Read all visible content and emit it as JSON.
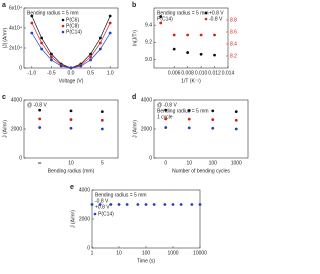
{
  "chart_data": [
    {
      "type": "line",
      "label": "a",
      "x_label": "Voltage (V)",
      "y_label": "|J| (A/m²)",
      "x": [
        -1.0,
        -0.75,
        -0.5,
        -0.25,
        0,
        0.25,
        0.5,
        0.75,
        1.0
      ],
      "xlim": [
        -1.2,
        1.2
      ],
      "xticks": [
        {
          "value": -1,
          "label": "-1.0"
        },
        -0.5,
        {
          "value": 0,
          "label": "0.0"
        },
        0.5,
        {
          "value": 1,
          "label": "1.0"
        }
      ],
      "ylim": [
        0,
        60000
      ],
      "yticks": [
        0,
        {
          "value": 20000,
          "label": "2x10⁴"
        },
        {
          "value": 40000,
          "label": "4x10⁴"
        },
        {
          "value": 60000,
          "label": "6x10⁴"
        }
      ],
      "legend": "upper center",
      "annotations": [
        "Bending radius = 5 mm"
      ],
      "series": [
        {
          "name": "P(C6)",
          "color": "#111111",
          "values": [
            52000,
            30000,
            14000,
            4000,
            0,
            4000,
            14000,
            30000,
            52000
          ]
        },
        {
          "name": "P(C8)",
          "color": "#d42020",
          "values": [
            45000,
            25000,
            11000,
            3000,
            0,
            3000,
            11000,
            25000,
            45000
          ]
        },
        {
          "name": "P(C14)",
          "color": "#2040c0",
          "values": [
            35000,
            19000,
            8000,
            2000,
            0,
            2000,
            8000,
            19000,
            35000
          ]
        }
      ]
    },
    {
      "type": "scatter",
      "label": "b",
      "x_label": "1/T (K⁻¹)",
      "y_label": "ln(J/T²)",
      "x": [
        0.004,
        0.006,
        0.008,
        0.01,
        0.012
      ],
      "xlim": [
        0.003,
        0.014
      ],
      "xticks": [
        0.006,
        0.008,
        {
          "value": 0.01,
          "label": "0.010"
        },
        0.012,
        0.014
      ],
      "ylim": [
        8.9,
        9.6
      ],
      "yticks": [
        {
          "value": 9,
          "label": "9.0"
        },
        9.2,
        9.4
      ],
      "y2lim": [
        8.0,
        9.0
      ],
      "y2ticks": [
        8.2,
        8.4,
        8.6,
        8.8
      ],
      "y2_color": "#d42020",
      "legend": "upper right",
      "annotations": [
        "Bending radius = 5 mm",
        "P(C14)"
      ],
      "series": [
        {
          "name": "+0.8 V",
          "color": "#111111",
          "values": [
            9.5,
            9.12,
            9.08,
            9.06,
            9.05
          ]
        },
        {
          "name": "-0.8 V",
          "color": "#d42020",
          "axis": "y2",
          "values": [
            8.75,
            8.55,
            8.55,
            8.55,
            8.55
          ]
        }
      ]
    },
    {
      "type": "scatter",
      "label": "c",
      "x_label": "Bending radius (mm)",
      "y_label": "J (A/m²)",
      "categories": [
        "∞",
        "10",
        "5"
      ],
      "ylim": [
        0,
        4000
      ],
      "yticks": [
        0,
        2000,
        4000
      ],
      "annotations": [
        "@ -0.8 V"
      ],
      "series": [
        {
          "color": "#111111",
          "values": [
            3300,
            3250,
            3200
          ]
        },
        {
          "color": "#d42020",
          "values": [
            2700,
            2650,
            2600
          ]
        },
        {
          "color": "#2040c0",
          "values": [
            2100,
            2050,
            2000
          ]
        }
      ]
    },
    {
      "type": "scatter",
      "label": "d",
      "x_label": "Number of bending cycles",
      "y_label": "J (A/m²)",
      "categories": [
        "0",
        "10",
        "100",
        "1000"
      ],
      "ylim": [
        0,
        4000
      ],
      "yticks": [
        0,
        2000,
        4000
      ],
      "annotations": [
        "@ -0.8 V",
        "Bending radius = 5 mm",
        "1 cycle"
      ],
      "series": [
        {
          "color": "#111111",
          "values": [
            3300,
            3280,
            3250,
            3200
          ]
        },
        {
          "color": "#d42020",
          "values": [
            2700,
            2680,
            2650,
            2600
          ]
        },
        {
          "color": "#2040c0",
          "values": [
            2100,
            2080,
            2050,
            2000
          ]
        }
      ]
    },
    {
      "type": "scatter",
      "label": "e",
      "x_label": "Time (s)",
      "y_label": "J (A/m²)",
      "x": [
        1,
        2,
        5,
        10,
        20,
        50,
        100,
        200,
        500,
        1000,
        2000,
        5000,
        10000
      ],
      "log_x": true,
      "xlim": [
        1,
        10000
      ],
      "xticks": [
        1,
        10,
        100,
        1000,
        10000
      ],
      "ylim": [
        0,
        4000
      ],
      "yticks": [
        0,
        2000,
        4000
      ],
      "legend": "upper left",
      "annotations": [
        "Bending radius = 5 mm",
        "-0.8 V",
        "+0.8 V"
      ],
      "series": [
        {
          "name": "P(C14)",
          "color": "#2040c0",
          "values": [
            3000,
            3000,
            3000,
            3000,
            3000,
            3000,
            3000,
            3000,
            3000,
            3000,
            3000,
            3000,
            3000
          ]
        }
      ]
    }
  ]
}
